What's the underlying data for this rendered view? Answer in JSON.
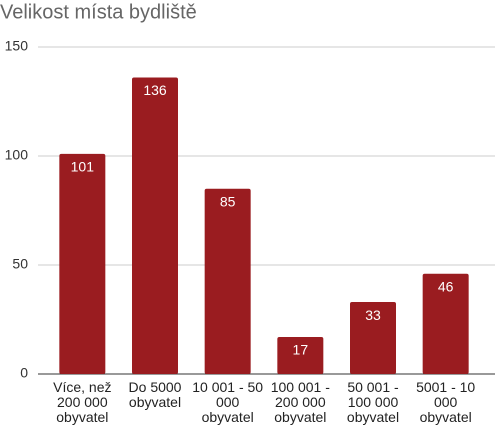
{
  "chart_data": {
    "type": "bar",
    "title": "Velikost místa bydliště",
    "categories": [
      "Více, než 200 000 obyvatel",
      "Do 5000 obyvatel",
      "10 001 - 50 000 obyvatel",
      "100 001 - 200 000 obyvatel",
      "50 001 - 100 000 obyvatel",
      "5001 - 10 000 obyvatel"
    ],
    "values": [
      101,
      136,
      85,
      17,
      33,
      46
    ],
    "color": "#9a1c20",
    "ylim": [
      0,
      150
    ],
    "yticks": [
      0,
      50,
      100,
      150
    ],
    "grid": true
  }
}
